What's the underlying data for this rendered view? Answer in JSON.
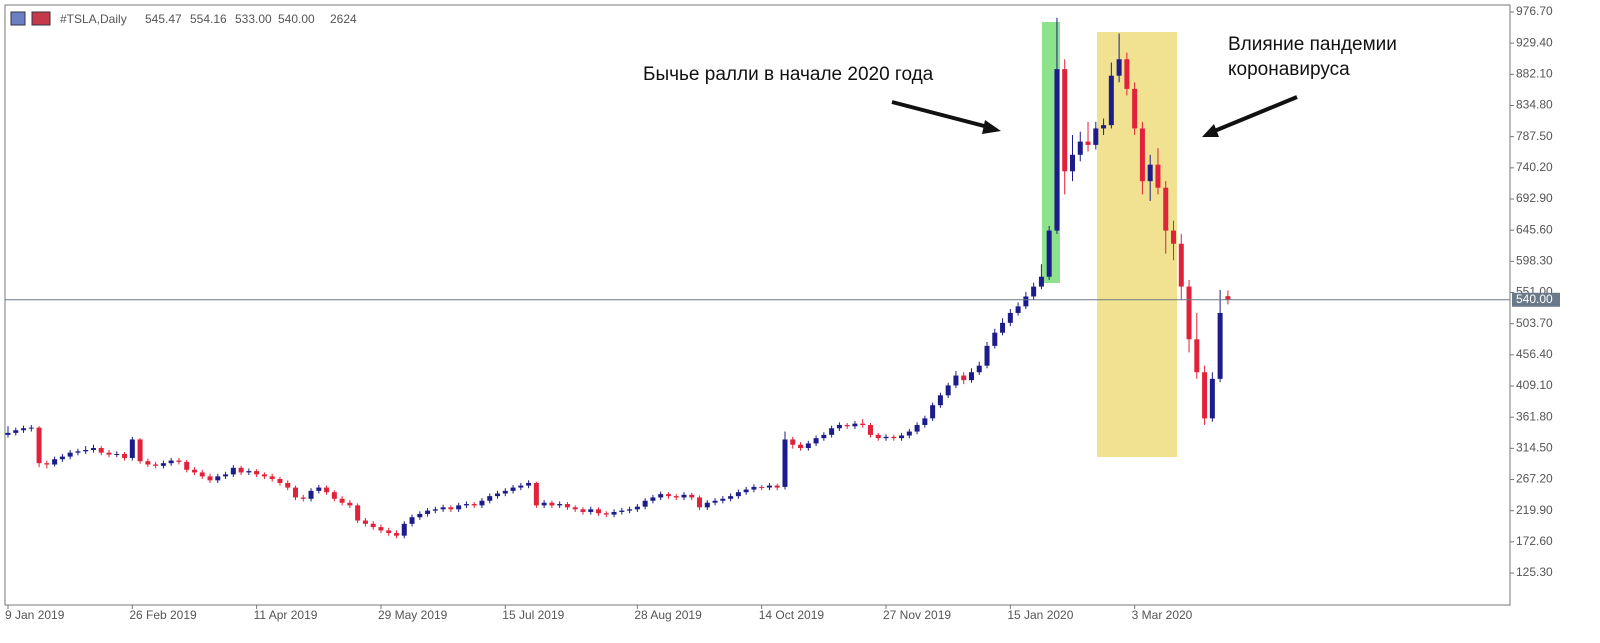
{
  "chart_data": {
    "type": "candlestick",
    "header": {
      "symbol": "#TSLA,Daily",
      "open": "545.47",
      "high": "554.16",
      "low": "533.00",
      "close": "540.00",
      "volume": "2624"
    },
    "annotations": [
      "Бычье ралли в начале 2020 года",
      "Влияние пандемии",
      "коронавируса"
    ],
    "bull_color": "#1c1c8a",
    "bear_color": "#e0223a",
    "grid": false,
    "ylim": [
      76.8,
      987.3
    ],
    "yticks": [
      {
        "value": 976.7,
        "label": "976.70"
      },
      {
        "value": 929.4,
        "label": "929.40"
      },
      {
        "value": 882.1,
        "label": "882.10"
      },
      {
        "value": 834.8,
        "label": "834.80"
      },
      {
        "value": 787.5,
        "label": "787.50"
      },
      {
        "value": 740.2,
        "label": "740.20"
      },
      {
        "value": 692.9,
        "label": "692.90"
      },
      {
        "value": 645.6,
        "label": "645.60"
      },
      {
        "value": 598.3,
        "label": "598.30"
      },
      {
        "value": 551,
        "label": "551.00"
      },
      {
        "value": 503.7,
        "label": "503.70"
      },
      {
        "value": 456.4,
        "label": "456.40"
      },
      {
        "value": 409.1,
        "label": "409.10"
      },
      {
        "value": 361.8,
        "label": "361.80"
      },
      {
        "value": 314.5,
        "label": "314.50"
      },
      {
        "value": 267.2,
        "label": "267.20"
      },
      {
        "value": 219.9,
        "label": "219.90"
      },
      {
        "value": 172.6,
        "label": "172.60"
      },
      {
        "value": 125.3,
        "label": "125.30"
      }
    ],
    "last_price": {
      "value": 540,
      "label": "540.00"
    },
    "xticks": [
      {
        "value": 0,
        "label": "9 Jan 2019"
      },
      {
        "value": 16,
        "label": "26 Feb 2019"
      },
      {
        "value": 32,
        "label": "11 Apr 2019"
      },
      {
        "value": 48,
        "label": "29 May 2019"
      },
      {
        "value": 64,
        "label": "15 Jul 2019"
      },
      {
        "value": 81,
        "label": "28 Aug 2019"
      },
      {
        "value": 97,
        "label": "14 Oct 2019"
      },
      {
        "value": 113,
        "label": "27 Nov 2019"
      },
      {
        "value": 129,
        "label": "15 Jan 2020"
      },
      {
        "value": 145,
        "label": "3 Mar 2020"
      }
    ],
    "candles": [
      [
        335,
        348,
        331,
        338
      ],
      [
        338,
        346,
        334,
        342
      ],
      [
        342,
        349,
        338,
        345
      ],
      [
        345,
        350,
        340,
        346
      ],
      [
        346,
        348,
        286,
        292
      ],
      [
        292,
        296,
        284,
        290
      ],
      [
        290,
        302,
        287,
        298
      ],
      [
        298,
        306,
        294,
        302
      ],
      [
        302,
        312,
        298,
        308
      ],
      [
        308,
        314,
        304,
        310
      ],
      [
        310,
        318,
        306,
        312
      ],
      [
        312,
        320,
        308,
        315
      ],
      [
        315,
        318,
        304,
        308
      ],
      [
        308,
        312,
        301,
        305
      ],
      [
        305,
        310,
        301,
        306
      ],
      [
        306,
        309,
        296,
        300
      ],
      [
        300,
        332,
        296,
        328
      ],
      [
        328,
        330,
        291,
        295
      ],
      [
        295,
        299,
        286,
        290
      ],
      [
        290,
        294,
        284,
        288
      ],
      [
        288,
        296,
        284,
        292
      ],
      [
        292,
        300,
        288,
        296
      ],
      [
        296,
        300,
        290,
        294
      ],
      [
        294,
        297,
        278,
        282
      ],
      [
        282,
        286,
        274,
        278
      ],
      [
        278,
        282,
        268,
        272
      ],
      [
        272,
        276,
        262,
        266
      ],
      [
        266,
        276,
        262,
        272
      ],
      [
        272,
        279,
        268,
        275
      ],
      [
        275,
        289,
        271,
        285
      ],
      [
        285,
        288,
        274,
        278
      ],
      [
        278,
        284,
        274,
        280
      ],
      [
        280,
        283,
        271,
        275
      ],
      [
        275,
        278,
        268,
        272
      ],
      [
        272,
        276,
        264,
        268
      ],
      [
        268,
        271,
        258,
        262
      ],
      [
        262,
        266,
        251,
        255
      ],
      [
        255,
        258,
        236,
        240
      ],
      [
        240,
        244,
        234,
        238
      ],
      [
        238,
        254,
        234,
        250
      ],
      [
        250,
        259,
        246,
        255
      ],
      [
        255,
        258,
        244,
        248
      ],
      [
        248,
        251,
        234,
        238
      ],
      [
        238,
        242,
        228,
        232
      ],
      [
        232,
        236,
        224,
        228
      ],
      [
        228,
        231,
        201,
        205
      ],
      [
        205,
        209,
        196,
        200
      ],
      [
        200,
        204,
        191,
        195
      ],
      [
        195,
        199,
        186,
        190
      ],
      [
        190,
        194,
        182,
        186
      ],
      [
        186,
        190,
        178,
        182
      ],
      [
        182,
        204,
        178,
        200
      ],
      [
        200,
        214,
        196,
        210
      ],
      [
        210,
        219,
        206,
        215
      ],
      [
        215,
        224,
        211,
        220
      ],
      [
        220,
        226,
        216,
        222
      ],
      [
        222,
        229,
        218,
        225
      ],
      [
        225,
        228,
        218,
        222
      ],
      [
        222,
        232,
        218,
        228
      ],
      [
        228,
        234,
        224,
        230
      ],
      [
        230,
        233,
        224,
        228
      ],
      [
        228,
        239,
        224,
        235
      ],
      [
        235,
        246,
        231,
        242
      ],
      [
        242,
        250,
        238,
        246
      ],
      [
        246,
        254,
        242,
        250
      ],
      [
        250,
        259,
        246,
        255
      ],
      [
        255,
        262,
        251,
        258
      ],
      [
        258,
        266,
        254,
        262
      ],
      [
        262,
        264,
        224,
        228
      ],
      [
        228,
        236,
        224,
        232
      ],
      [
        232,
        235,
        224,
        228
      ],
      [
        228,
        234,
        224,
        230
      ],
      [
        230,
        233,
        221,
        225
      ],
      [
        225,
        228,
        218,
        222
      ],
      [
        222,
        225,
        214,
        218
      ],
      [
        218,
        226,
        214,
        222
      ],
      [
        222,
        225,
        212,
        216
      ],
      [
        216,
        219,
        210,
        214
      ],
      [
        214,
        222,
        210,
        218
      ],
      [
        218,
        224,
        214,
        220
      ],
      [
        220,
        226,
        216,
        222
      ],
      [
        222,
        230,
        218,
        226
      ],
      [
        226,
        239,
        222,
        235
      ],
      [
        235,
        244,
        231,
        240
      ],
      [
        240,
        249,
        236,
        245
      ],
      [
        245,
        248,
        238,
        242
      ],
      [
        242,
        245,
        236,
        240
      ],
      [
        240,
        248,
        236,
        244
      ],
      [
        244,
        247,
        236,
        240
      ],
      [
        240,
        243,
        221,
        225
      ],
      [
        225,
        236,
        221,
        232
      ],
      [
        232,
        239,
        228,
        235
      ],
      [
        235,
        242,
        231,
        238
      ],
      [
        238,
        246,
        234,
        242
      ],
      [
        242,
        252,
        238,
        248
      ],
      [
        248,
        256,
        244,
        252
      ],
      [
        252,
        260,
        248,
        256
      ],
      [
        256,
        259,
        251,
        255
      ],
      [
        255,
        262,
        251,
        258
      ],
      [
        258,
        261,
        251,
        255
      ],
      [
        256,
        340,
        252,
        328
      ],
      [
        328,
        332,
        314,
        320
      ],
      [
        320,
        324,
        311,
        315
      ],
      [
        315,
        326,
        311,
        322
      ],
      [
        322,
        334,
        318,
        330
      ],
      [
        330,
        339,
        326,
        335
      ],
      [
        335,
        349,
        331,
        345
      ],
      [
        345,
        354,
        341,
        350
      ],
      [
        350,
        353,
        344,
        348
      ],
      [
        348,
        356,
        344,
        352
      ],
      [
        352,
        359,
        346,
        350
      ],
      [
        350,
        353,
        331,
        335
      ],
      [
        335,
        338,
        326,
        330
      ],
      [
        330,
        336,
        326,
        332
      ],
      [
        332,
        335,
        326,
        330
      ],
      [
        330,
        338,
        326,
        334
      ],
      [
        334,
        344,
        330,
        340
      ],
      [
        340,
        354,
        336,
        350
      ],
      [
        350,
        364,
        346,
        360
      ],
      [
        360,
        384,
        356,
        380
      ],
      [
        380,
        399,
        376,
        395
      ],
      [
        395,
        414,
        391,
        410
      ],
      [
        410,
        432,
        406,
        425
      ],
      [
        425,
        430,
        412,
        418
      ],
      [
        418,
        436,
        414,
        430
      ],
      [
        430,
        446,
        426,
        440
      ],
      [
        440,
        476,
        436,
        470
      ],
      [
        470,
        496,
        466,
        490
      ],
      [
        490,
        512,
        486,
        505
      ],
      [
        505,
        526,
        500,
        520
      ],
      [
        520,
        536,
        516,
        530
      ],
      [
        530,
        552,
        526,
        545
      ],
      [
        545,
        566,
        540,
        560
      ],
      [
        560,
        594,
        556,
        575
      ],
      [
        575,
        652,
        570,
        645
      ],
      [
        645,
        968,
        640,
        890
      ],
      [
        890,
        905,
        700,
        735
      ],
      [
        735,
        790,
        720,
        760
      ],
      [
        760,
        795,
        750,
        780
      ],
      [
        780,
        810,
        765,
        775
      ],
      [
        775,
        810,
        768,
        800
      ],
      [
        800,
        815,
        790,
        805
      ],
      [
        805,
        900,
        800,
        880
      ],
      [
        880,
        944,
        870,
        905
      ],
      [
        905,
        915,
        850,
        860
      ],
      [
        860,
        870,
        790,
        800
      ],
      [
        800,
        810,
        700,
        720
      ],
      [
        720,
        760,
        690,
        745
      ],
      [
        745,
        770,
        700,
        710
      ],
      [
        710,
        720,
        610,
        645
      ],
      [
        645,
        660,
        600,
        625
      ],
      [
        625,
        640,
        540,
        560
      ],
      [
        560,
        570,
        460,
        480
      ],
      [
        480,
        520,
        420,
        430
      ],
      [
        430,
        440,
        350,
        360
      ],
      [
        360,
        430,
        355,
        420
      ],
      [
        420,
        555,
        415,
        520
      ],
      [
        545.47,
        554.16,
        533,
        540
      ]
    ]
  }
}
